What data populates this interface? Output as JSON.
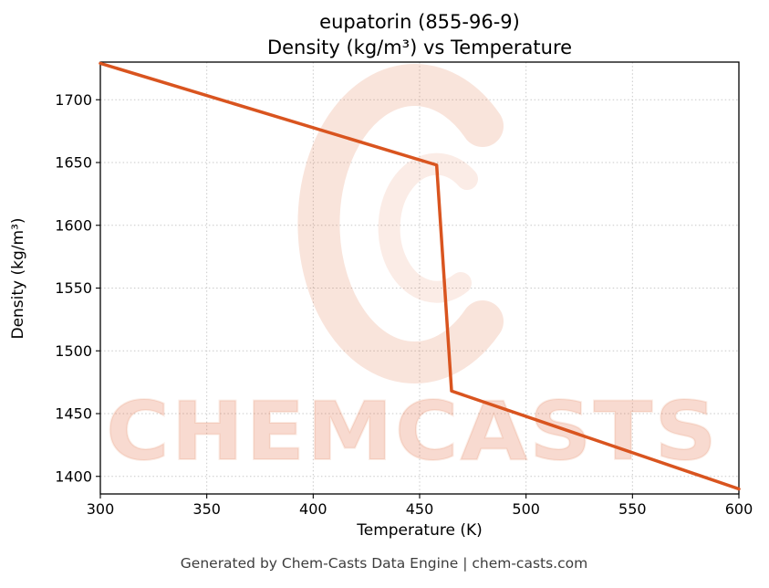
{
  "chart": {
    "title_lines": [
      "eupatorin (855-96-9)",
      "Density (kg/m³) vs Temperature"
    ]
  },
  "chart_data": {
    "type": "line",
    "title": "eupatorin (855-96-9)\nDensity (kg/m³) vs Temperature",
    "xlabel": "Temperature (K)",
    "ylabel": "Density (kg/m³)",
    "x": [
      300,
      458,
      465,
      600
    ],
    "y": [
      1729,
      1648,
      1468,
      1390
    ],
    "xlim": [
      300,
      600
    ],
    "ylim": [
      1386,
      1730
    ],
    "xticks": [
      300,
      350,
      400,
      450,
      500,
      550,
      600
    ],
    "yticks": [
      1400,
      1450,
      1500,
      1550,
      1600,
      1650,
      1700
    ],
    "grid": true,
    "grid_style": "dotted",
    "legend": false,
    "line_color": "#d9541f",
    "line_width": 3.5
  },
  "watermark": {
    "text": "CHEMCASTS",
    "color": "#d9541f"
  },
  "footer": {
    "text": "Generated by Chem-Casts Data Engine | chem-casts.com"
  }
}
